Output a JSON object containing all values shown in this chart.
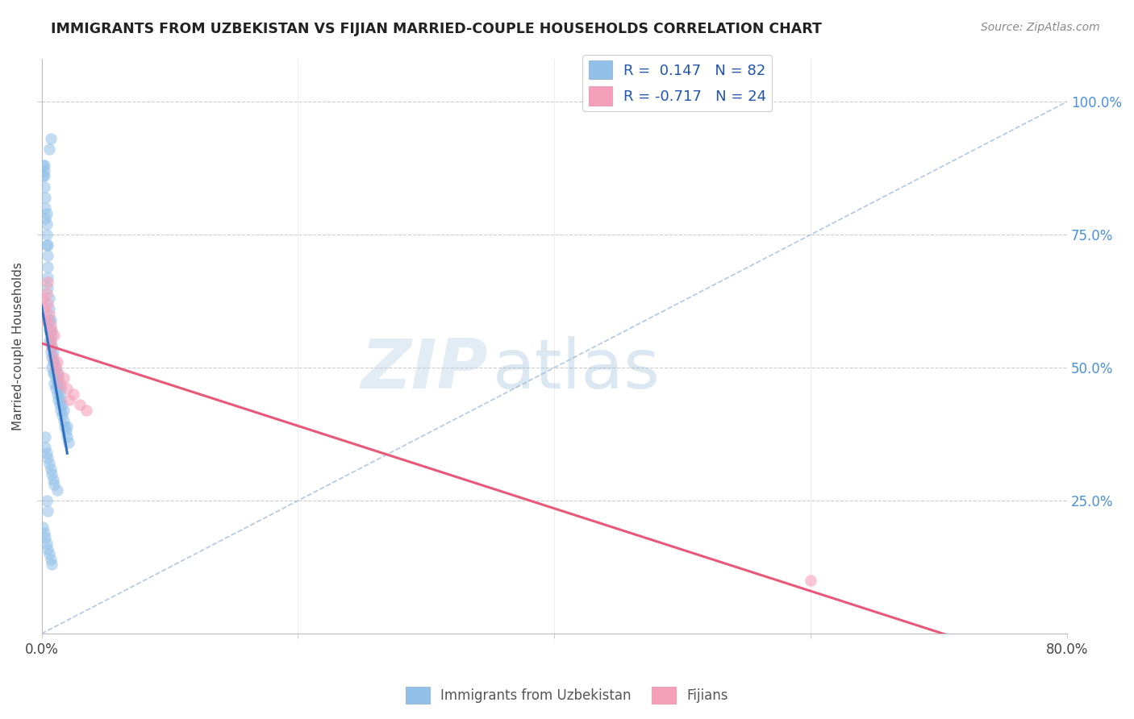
{
  "title": "IMMIGRANTS FROM UZBEKISTAN VS FIJIAN MARRIED-COUPLE HOUSEHOLDS CORRELATION CHART",
  "source": "Source: ZipAtlas.com",
  "ylabel": "Married-couple Households",
  "y_ticks": [
    0.25,
    0.5,
    0.75,
    1.0
  ],
  "y_tick_labels": [
    "25.0%",
    "50.0%",
    "75.0%",
    "100.0%"
  ],
  "x_lim": [
    0.0,
    0.8
  ],
  "y_lim": [
    0.0,
    1.08
  ],
  "blue_color": "#92C0E8",
  "pink_color": "#F4A0BA",
  "blue_line_color": "#2E6FBF",
  "pink_line_color": "#E85878",
  "dash_line_color": "#B0C8E0",
  "blue_R": 0.147,
  "blue_N": 82,
  "pink_R": -0.717,
  "pink_N": 24,
  "blue_scatter_x": [
    0.001,
    0.001,
    0.002,
    0.002,
    0.002,
    0.002,
    0.003,
    0.003,
    0.003,
    0.004,
    0.004,
    0.004,
    0.004,
    0.005,
    0.005,
    0.005,
    0.005,
    0.005,
    0.006,
    0.006,
    0.006,
    0.006,
    0.006,
    0.007,
    0.007,
    0.007,
    0.007,
    0.008,
    0.008,
    0.008,
    0.008,
    0.009,
    0.009,
    0.009,
    0.01,
    0.01,
    0.01,
    0.011,
    0.011,
    0.011,
    0.012,
    0.012,
    0.012,
    0.013,
    0.013,
    0.013,
    0.014,
    0.014,
    0.015,
    0.015,
    0.015,
    0.016,
    0.016,
    0.017,
    0.017,
    0.018,
    0.019,
    0.02,
    0.02,
    0.021,
    0.003,
    0.003,
    0.004,
    0.005,
    0.006,
    0.007,
    0.008,
    0.009,
    0.01,
    0.012,
    0.001,
    0.002,
    0.003,
    0.004,
    0.005,
    0.006,
    0.007,
    0.008,
    0.006,
    0.007,
    0.004,
    0.005
  ],
  "blue_scatter_y": [
    0.86,
    0.88,
    0.84,
    0.86,
    0.87,
    0.88,
    0.78,
    0.8,
    0.82,
    0.73,
    0.75,
    0.77,
    0.79,
    0.65,
    0.67,
    0.69,
    0.71,
    0.73,
    0.55,
    0.57,
    0.59,
    0.61,
    0.63,
    0.53,
    0.55,
    0.57,
    0.59,
    0.5,
    0.52,
    0.54,
    0.56,
    0.49,
    0.51,
    0.53,
    0.47,
    0.49,
    0.51,
    0.46,
    0.48,
    0.5,
    0.45,
    0.47,
    0.49,
    0.44,
    0.46,
    0.48,
    0.43,
    0.45,
    0.42,
    0.44,
    0.46,
    0.41,
    0.43,
    0.4,
    0.42,
    0.39,
    0.38,
    0.37,
    0.39,
    0.36,
    0.35,
    0.37,
    0.34,
    0.33,
    0.32,
    0.31,
    0.3,
    0.29,
    0.28,
    0.27,
    0.2,
    0.19,
    0.18,
    0.17,
    0.16,
    0.15,
    0.14,
    0.13,
    0.91,
    0.93,
    0.25,
    0.23
  ],
  "pink_scatter_x": [
    0.001,
    0.002,
    0.003,
    0.004,
    0.005,
    0.005,
    0.006,
    0.007,
    0.007,
    0.008,
    0.009,
    0.01,
    0.011,
    0.012,
    0.013,
    0.015,
    0.017,
    0.02,
    0.022,
    0.025,
    0.03,
    0.035,
    0.6,
    0.008
  ],
  "pink_scatter_y": [
    0.63,
    0.61,
    0.59,
    0.64,
    0.66,
    0.62,
    0.6,
    0.55,
    0.58,
    0.54,
    0.52,
    0.56,
    0.5,
    0.51,
    0.49,
    0.47,
    0.48,
    0.46,
    0.44,
    0.45,
    0.43,
    0.42,
    0.1,
    0.57
  ]
}
